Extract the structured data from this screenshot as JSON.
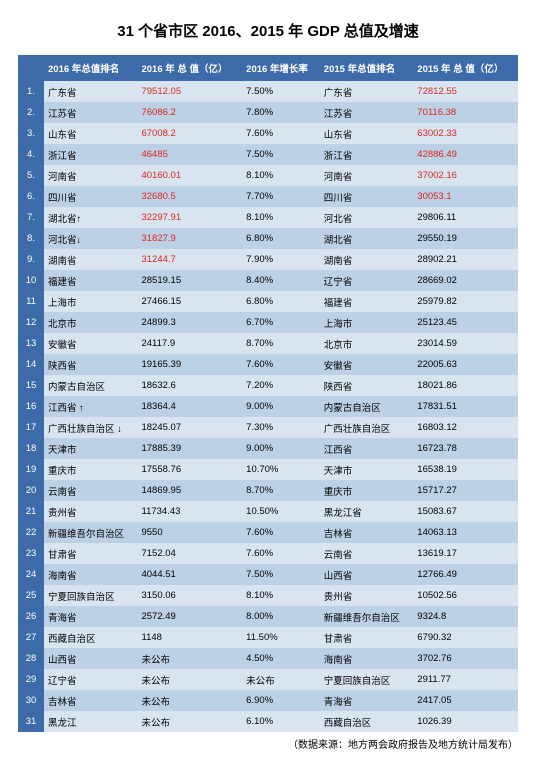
{
  "title": "31 个省市区 2016、2015 年 GDP 总值及增速",
  "footer": "（数据来源：地方两会政府报告及地方统计局发布）",
  "columns": [
    "",
    "2016 年总值排名",
    "2016 年 总 值（亿）",
    "2016 年增长率",
    "2015 年总值排名",
    "2015 年 总 值（亿）"
  ],
  "rows": [
    {
      "rank": "1.",
      "n16": "广东省",
      "v16": "79512.05",
      "v16red": true,
      "g16": "7.50%",
      "n15": "广东省",
      "v15": "72812.55",
      "v15red": true
    },
    {
      "rank": "2.",
      "n16": "江苏省",
      "v16": "76086.2",
      "v16red": true,
      "g16": "7.80%",
      "n15": "江苏省",
      "v15": "70116.38",
      "v15red": true
    },
    {
      "rank": "3.",
      "n16": "山东省",
      "v16": "67008.2",
      "v16red": true,
      "g16": "7.60%",
      "n15": "山东省",
      "v15": "63002.33",
      "v15red": true
    },
    {
      "rank": "4.",
      "n16": "浙江省",
      "v16": "46485",
      "v16red": true,
      "g16": "7.50%",
      "n15": "浙江省",
      "v15": "42886.49",
      "v15red": true
    },
    {
      "rank": "5.",
      "n16": "河南省",
      "v16": "40160.01",
      "v16red": true,
      "g16": "8.10%",
      "n15": "河南省",
      "v15": "37002.16",
      "v15red": true
    },
    {
      "rank": "6.",
      "n16": "四川省",
      "v16": "32680.5",
      "v16red": true,
      "g16": "7.70%",
      "n15": "四川省",
      "v15": "30053.1",
      "v15red": true
    },
    {
      "rank": "7.",
      "n16": "湖北省↑",
      "v16": "32297.91",
      "v16red": true,
      "g16": "8.10%",
      "n15": "河北省",
      "v15": "29806.11",
      "v15red": false
    },
    {
      "rank": "8.",
      "n16": "河北省↓",
      "v16": "31827.9",
      "v16red": true,
      "g16": "6.80%",
      "n15": "湖北省",
      "v15": "29550.19",
      "v15red": false
    },
    {
      "rank": "9.",
      "n16": "湖南省",
      "v16": "31244.7",
      "v16red": true,
      "g16": "7.90%",
      "n15": "湖南省",
      "v15": "28902.21",
      "v15red": false
    },
    {
      "rank": "10",
      "n16": "福建省",
      "v16": "28519.15",
      "v16red": false,
      "g16": "8.40%",
      "n15": "辽宁省",
      "v15": "28669.02",
      "v15red": false
    },
    {
      "rank": "11",
      "n16": "上海市",
      "v16": "27466.15",
      "v16red": false,
      "g16": "6.80%",
      "n15": "福建省",
      "v15": "25979.82",
      "v15red": false
    },
    {
      "rank": "12",
      "n16": "北京市",
      "v16": "24899.3",
      "v16red": false,
      "g16": "6.70%",
      "n15": "上海市",
      "v15": "25123.45",
      "v15red": false
    },
    {
      "rank": "13",
      "n16": "安徽省",
      "v16": "24117.9",
      "v16red": false,
      "g16": "8.70%",
      "n15": "北京市",
      "v15": "23014.59",
      "v15red": false
    },
    {
      "rank": "14",
      "n16": "陕西省",
      "v16": "19165.39",
      "v16red": false,
      "g16": "7.60%",
      "n15": "安徽省",
      "v15": "22005.63",
      "v15red": false
    },
    {
      "rank": "15",
      "n16": "内蒙古自治区",
      "v16": "18632.6",
      "v16red": false,
      "g16": "7.20%",
      "n15": "陕西省",
      "v15": "18021.86",
      "v15red": false
    },
    {
      "rank": "16",
      "n16": "江西省 ↑",
      "v16": "18364.4",
      "v16red": false,
      "g16": "9.00%",
      "n15": "内蒙古自治区",
      "v15": "17831.51",
      "v15red": false
    },
    {
      "rank": "17",
      "n16": "广西壮族自治区 ↓",
      "v16": "18245.07",
      "v16red": false,
      "g16": "7.30%",
      "n15": "广西壮族自治区",
      "v15": "16803.12",
      "v15red": false
    },
    {
      "rank": "18",
      "n16": "天津市",
      "v16": "17885.39",
      "v16red": false,
      "g16": "9.00%",
      "n15": "江西省",
      "v15": "16723.78",
      "v15red": false
    },
    {
      "rank": "19",
      "n16": "重庆市",
      "v16": "17558.76",
      "v16red": false,
      "g16": "10.70%",
      "n15": "天津市",
      "v15": "16538.19",
      "v15red": false
    },
    {
      "rank": "20",
      "n16": "云南省",
      "v16": "14869.95",
      "v16red": false,
      "g16": "8.70%",
      "n15": "重庆市",
      "v15": "15717.27",
      "v15red": false
    },
    {
      "rank": "21",
      "n16": "贵州省",
      "v16": "11734.43",
      "v16red": false,
      "g16": "10.50%",
      "n15": "黑龙江省",
      "v15": "15083.67",
      "v15red": false
    },
    {
      "rank": "22",
      "n16": "新疆维吾尔自治区",
      "v16": "9550",
      "v16red": false,
      "g16": "7.60%",
      "n15": "吉林省",
      "v15": "14063.13",
      "v15red": false
    },
    {
      "rank": "23",
      "n16": "甘肃省",
      "v16": "7152.04",
      "v16red": false,
      "g16": "7.60%",
      "n15": "云南省",
      "v15": "13619.17",
      "v15red": false
    },
    {
      "rank": "24",
      "n16": "海南省",
      "v16": "4044.51",
      "v16red": false,
      "g16": "7.50%",
      "n15": "山西省",
      "v15": "12766.49",
      "v15red": false
    },
    {
      "rank": "25",
      "n16": "宁夏回族自治区",
      "v16": "3150.06",
      "v16red": false,
      "g16": "8.10%",
      "n15": "贵州省",
      "v15": "10502.56",
      "v15red": false
    },
    {
      "rank": "26",
      "n16": "青海省",
      "v16": "2572.49",
      "v16red": false,
      "g16": "8.00%",
      "n15": "新疆维吾尔自治区",
      "v15": "9324.8",
      "v15red": false
    },
    {
      "rank": "27",
      "n16": "西藏自治区",
      "v16": "1148",
      "v16red": false,
      "g16": "11.50%",
      "n15": "甘肃省",
      "v15": "6790.32",
      "v15red": false
    },
    {
      "rank": "28",
      "n16": "山西省",
      "v16": "未公布",
      "v16red": false,
      "g16": "4.50%",
      "n15": "海南省",
      "v15": "3702.76",
      "v15red": false
    },
    {
      "rank": "29",
      "n16": "辽宁省",
      "v16": "未公布",
      "v16red": false,
      "g16": "未公布",
      "n15": "宁夏回族自治区",
      "v15": "2911.77",
      "v15red": false
    },
    {
      "rank": "30",
      "n16": "吉林省",
      "v16": "未公布",
      "v16red": false,
      "g16": "6.90%",
      "n15": "青海省",
      "v15": "2417.05",
      "v15red": false
    },
    {
      "rank": "31",
      "n16": "黑龙江",
      "v16": "未公布",
      "v16red": false,
      "g16": "6.10%",
      "n15": "西藏自治区",
      "v15": "1026.39",
      "v15red": false
    }
  ]
}
